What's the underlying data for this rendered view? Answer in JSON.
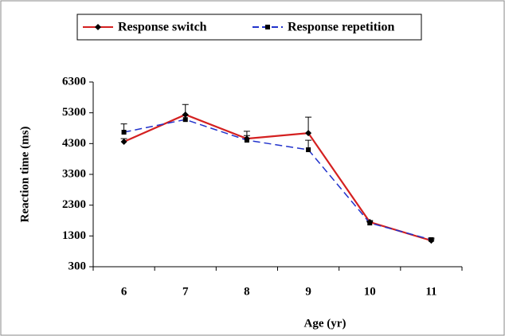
{
  "chart_data": {
    "type": "line",
    "categories": [
      "6",
      "7",
      "8",
      "9",
      "10",
      "11"
    ],
    "series": [
      {
        "name": "Response switch",
        "color": "#d42020",
        "dash": false,
        "marker": "diamond",
        "values": [
          4360,
          5240,
          4460,
          4640,
          1750,
          1150
        ],
        "errors": [
          100,
          330,
          240,
          520,
          50,
          50
        ]
      },
      {
        "name": "Response repetition",
        "color": "#2233cc",
        "dash": true,
        "marker": "square",
        "values": [
          4670,
          5080,
          4410,
          4100,
          1720,
          1180
        ],
        "errors": [
          270,
          150,
          150,
          310,
          50,
          50
        ]
      }
    ],
    "xlabel": "Age (yr)",
    "ylabel": "Reaction time (ms)",
    "ylim": [
      300,
      6300
    ],
    "yticks": [
      300,
      1300,
      2300,
      3300,
      4300,
      5300,
      6300
    ],
    "legend": "top",
    "grid": false
  }
}
